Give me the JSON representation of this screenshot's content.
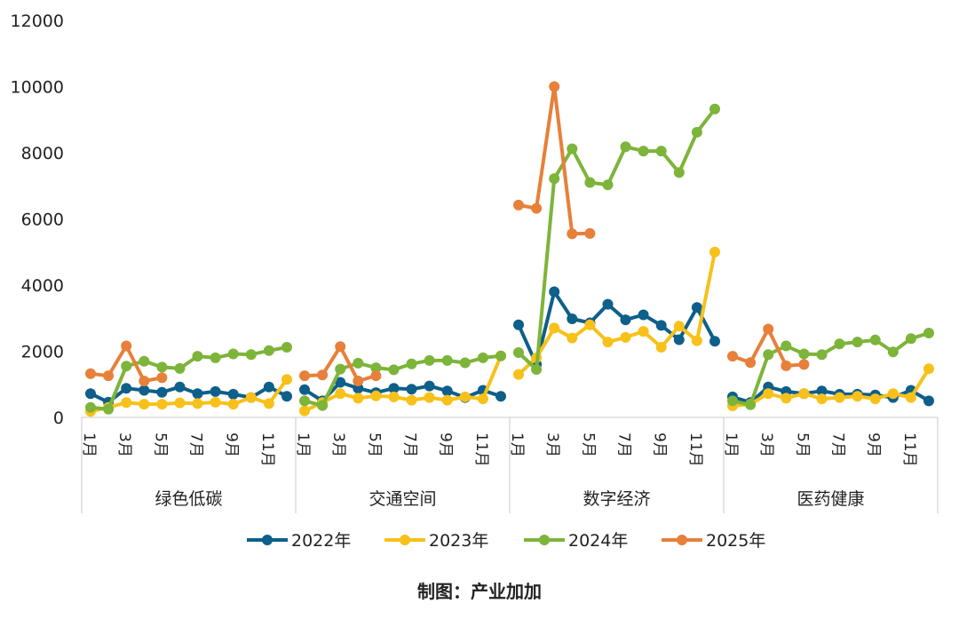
{
  "chart_data": {
    "type": "line",
    "title": "",
    "xlabel": "",
    "ylabel": "",
    "ylim": [
      0,
      12000
    ],
    "yticks": [
      "0",
      "2000",
      "4000",
      "6000",
      "8000",
      "10000",
      "12000"
    ],
    "grid": false,
    "legend_position": "bottom",
    "month_labels": [
      "1月",
      "",
      "3月",
      "",
      "5月",
      "",
      "7月",
      "",
      "9月",
      "",
      "11月",
      ""
    ],
    "groups": [
      {
        "name": "绿色低碳",
        "series": [
          {
            "name": "2022年",
            "values": [
              720,
              460,
              880,
              820,
              760,
              920,
              720,
              780,
              700,
              600,
              920,
              640
            ]
          },
          {
            "name": "2023年",
            "values": [
              180,
              300,
              450,
              400,
              400,
              440,
              420,
              460,
              400,
              600,
              420,
              1150
            ]
          },
          {
            "name": "2024年",
            "values": [
              300,
              250,
              1550,
              1700,
              1520,
              1480,
              1850,
              1800,
              1920,
              1900,
              2020,
              2120
            ]
          },
          {
            "name": "2025年",
            "values": [
              1320,
              1260,
              2160,
              1100,
              1200
            ]
          }
        ]
      },
      {
        "name": "交通空间",
        "series": [
          {
            "name": "2022年",
            "values": [
              840,
              500,
              1060,
              880,
              750,
              880,
              850,
              950,
              800,
              600,
              820,
              640
            ]
          },
          {
            "name": "2023年",
            "values": [
              200,
              450,
              720,
              580,
              650,
              620,
              520,
              600,
              520,
              620,
              560,
              1860
            ]
          },
          {
            "name": "2024年",
            "values": [
              500,
              360,
              1460,
              1640,
              1500,
              1440,
              1620,
              1720,
              1720,
              1650,
              1800,
              1860
            ]
          },
          {
            "name": "2025年",
            "values": [
              1260,
              1280,
              2140,
              1100,
              1260
            ]
          }
        ]
      },
      {
        "name": "数字经济",
        "series": [
          {
            "name": "2022年",
            "values": [
              2800,
              1600,
              3800,
              2980,
              2860,
              3420,
              2950,
              3100,
              2780,
              2350,
              3320,
              2300
            ]
          },
          {
            "name": "2023年",
            "values": [
              1300,
              1800,
              2700,
              2400,
              2800,
              2280,
              2420,
              2600,
              2120,
              2760,
              2320,
              5000
            ]
          },
          {
            "name": "2024年",
            "values": [
              1960,
              1450,
              7220,
              8120,
              7100,
              7030,
              8180,
              8050,
              8050,
              7400,
              8620,
              9320
            ]
          },
          {
            "name": "2025年",
            "values": [
              6420,
              6320,
              10000,
              5550,
              5560
            ]
          }
        ]
      },
      {
        "name": "医药健康",
        "series": [
          {
            "name": "2022年",
            "values": [
              620,
              450,
              920,
              780,
              720,
              800,
              700,
              700,
              680,
              600,
              820,
              500
            ]
          },
          {
            "name": "2023年",
            "values": [
              350,
              400,
              720,
              580,
              720,
              560,
              600,
              640,
              560,
              720,
              600,
              1470
            ]
          },
          {
            "name": "2024年",
            "values": [
              500,
              380,
              1900,
              2160,
              1920,
              1900,
              2220,
              2280,
              2340,
              1980,
              2380,
              2550
            ]
          },
          {
            "name": "2025年",
            "values": [
              1850,
              1660,
              2670,
              1560,
              1600
            ]
          }
        ]
      }
    ]
  },
  "legend": [
    {
      "name": "2022年",
      "color": "#0E5F8A"
    },
    {
      "name": "2023年",
      "color": "#F7C11A"
    },
    {
      "name": "2024年",
      "color": "#7DB43A"
    },
    {
      "name": "2025年",
      "color": "#E7803A"
    }
  ],
  "credit": "制图：产业加加"
}
